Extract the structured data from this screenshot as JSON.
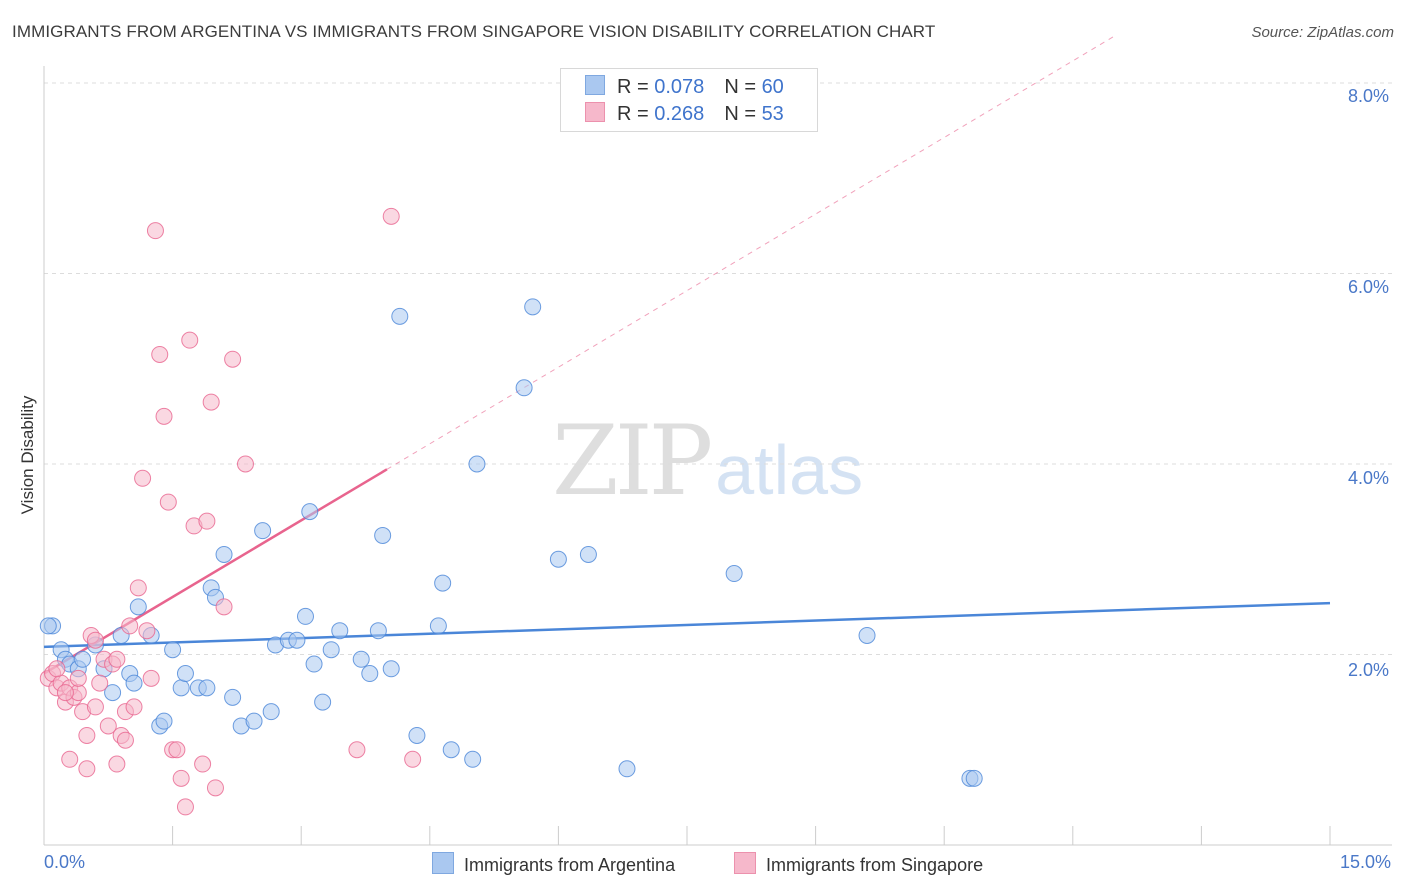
{
  "title": "IMMIGRANTS FROM ARGENTINA VS IMMIGRANTS FROM SINGAPORE VISION DISABILITY CORRELATION CHART",
  "source": "Source: ZipAtlas.com",
  "watermark": {
    "zip": "ZIP",
    "atlas": "atlas"
  },
  "stats": [
    {
      "r_label": "R = ",
      "r_value": "0.078",
      "n_label": "N = ",
      "n_value": "60",
      "color": "#aac8f0"
    },
    {
      "r_label": "R = ",
      "r_value": "0.268",
      "n_label": "N = ",
      "n_value": "53",
      "color": "#f6b8cb"
    }
  ],
  "legend": [
    {
      "label": "Immigrants from Argentina",
      "color": "#aac8f0"
    },
    {
      "label": "Immigrants from Singapore",
      "color": "#f6b8cb"
    }
  ],
  "axis_labels": {
    "y_title": "Vision Disability",
    "x_min": "0.0%",
    "x_max": "15.0%",
    "y_ticks": [
      "8.0%",
      "6.0%",
      "4.0%",
      "2.0%"
    ]
  },
  "chart_data": {
    "type": "scatter",
    "title": "IMMIGRANTS FROM ARGENTINA VS IMMIGRANTS FROM SINGAPORE VISION DISABILITY CORRELATION CHART",
    "xlabel": "",
    "ylabel": "Vision Disability",
    "xlim": [
      0,
      15
    ],
    "ylim": [
      0,
      8.3
    ],
    "y_ticks": [
      2,
      4,
      6,
      8
    ],
    "series": [
      {
        "name": "Immigrants from Argentina",
        "color": "#4a86d8",
        "fill": "#aac8f0",
        "trend": {
          "x0": 0.0,
          "y0": 2.08,
          "x1": 15.0,
          "y1": 2.54,
          "solid_to": 15.0
        },
        "points": [
          [
            0.1,
            2.3
          ],
          [
            0.2,
            2.05
          ],
          [
            0.25,
            1.95
          ],
          [
            0.3,
            1.9
          ],
          [
            0.4,
            1.85
          ],
          [
            0.45,
            1.95
          ],
          [
            0.6,
            2.1
          ],
          [
            0.7,
            1.85
          ],
          [
            0.8,
            1.6
          ],
          [
            0.9,
            2.2
          ],
          [
            1.0,
            1.8
          ],
          [
            1.05,
            1.7
          ],
          [
            1.1,
            2.5
          ],
          [
            1.25,
            2.2
          ],
          [
            1.35,
            1.25
          ],
          [
            1.4,
            1.3
          ],
          [
            1.5,
            2.05
          ],
          [
            1.6,
            1.65
          ],
          [
            1.65,
            1.8
          ],
          [
            1.8,
            1.65
          ],
          [
            1.9,
            1.65
          ],
          [
            1.95,
            2.7
          ],
          [
            2.0,
            2.6
          ],
          [
            2.1,
            3.05
          ],
          [
            2.2,
            1.55
          ],
          [
            2.3,
            1.25
          ],
          [
            2.45,
            1.3
          ],
          [
            2.55,
            3.3
          ],
          [
            2.65,
            1.4
          ],
          [
            2.7,
            2.1
          ],
          [
            2.85,
            2.15
          ],
          [
            2.95,
            2.15
          ],
          [
            3.05,
            2.4
          ],
          [
            3.1,
            3.5
          ],
          [
            3.15,
            1.9
          ],
          [
            3.25,
            1.5
          ],
          [
            3.35,
            2.05
          ],
          [
            3.45,
            2.25
          ],
          [
            3.7,
            1.95
          ],
          [
            3.8,
            1.8
          ],
          [
            3.9,
            2.25
          ],
          [
            3.95,
            3.25
          ],
          [
            4.05,
            1.85
          ],
          [
            4.15,
            5.55
          ],
          [
            4.35,
            1.15
          ],
          [
            4.6,
            2.3
          ],
          [
            4.65,
            2.75
          ],
          [
            4.75,
            1.0
          ],
          [
            5.0,
            0.9
          ],
          [
            5.05,
            4.0
          ],
          [
            5.6,
            4.8
          ],
          [
            5.7,
            5.65
          ],
          [
            6.0,
            3.0
          ],
          [
            6.35,
            3.05
          ],
          [
            6.8,
            0.8
          ],
          [
            8.05,
            2.85
          ],
          [
            9.6,
            2.2
          ],
          [
            10.8,
            0.7
          ],
          [
            10.85,
            0.7
          ],
          [
            0.05,
            2.3
          ]
        ]
      },
      {
        "name": "Immigrants from Singapore",
        "color": "#e8648e",
        "fill": "#f6b8cb",
        "trend": {
          "x0": 0.0,
          "y0": 1.8,
          "x1": 12.5,
          "y1": 8.5,
          "solid_to": 4.0
        },
        "points": [
          [
            0.05,
            1.75
          ],
          [
            0.1,
            1.8
          ],
          [
            0.15,
            1.65
          ],
          [
            0.2,
            1.7
          ],
          [
            0.25,
            1.5
          ],
          [
            0.3,
            1.65
          ],
          [
            0.35,
            1.55
          ],
          [
            0.4,
            1.6
          ],
          [
            0.45,
            1.4
          ],
          [
            0.5,
            1.15
          ],
          [
            0.55,
            2.2
          ],
          [
            0.6,
            2.15
          ],
          [
            0.65,
            1.7
          ],
          [
            0.7,
            1.95
          ],
          [
            0.75,
            1.25
          ],
          [
            0.8,
            1.9
          ],
          [
            0.85,
            0.85
          ],
          [
            0.9,
            1.15
          ],
          [
            0.95,
            1.4
          ],
          [
            1.0,
            2.3
          ],
          [
            1.05,
            1.45
          ],
          [
            1.1,
            2.7
          ],
          [
            1.15,
            3.85
          ],
          [
            1.2,
            2.25
          ],
          [
            1.25,
            1.75
          ],
          [
            1.3,
            6.45
          ],
          [
            1.35,
            5.15
          ],
          [
            1.4,
            4.5
          ],
          [
            1.45,
            3.6
          ],
          [
            1.5,
            1.0
          ],
          [
            1.55,
            1.0
          ],
          [
            1.6,
            0.7
          ],
          [
            1.65,
            0.4
          ],
          [
            1.7,
            5.3
          ],
          [
            1.75,
            3.35
          ],
          [
            1.85,
            0.85
          ],
          [
            1.9,
            3.4
          ],
          [
            1.95,
            4.65
          ],
          [
            2.0,
            0.6
          ],
          [
            2.1,
            2.5
          ],
          [
            2.2,
            5.1
          ],
          [
            2.35,
            4.0
          ],
          [
            0.3,
            0.9
          ],
          [
            0.5,
            0.8
          ],
          [
            0.85,
            1.95
          ],
          [
            3.65,
            1.0
          ],
          [
            4.05,
            6.6
          ],
          [
            4.3,
            0.9
          ],
          [
            0.95,
            1.1
          ],
          [
            0.6,
            1.45
          ],
          [
            0.4,
            1.75
          ],
          [
            0.25,
            1.6
          ],
          [
            0.15,
            1.85
          ]
        ]
      }
    ]
  }
}
